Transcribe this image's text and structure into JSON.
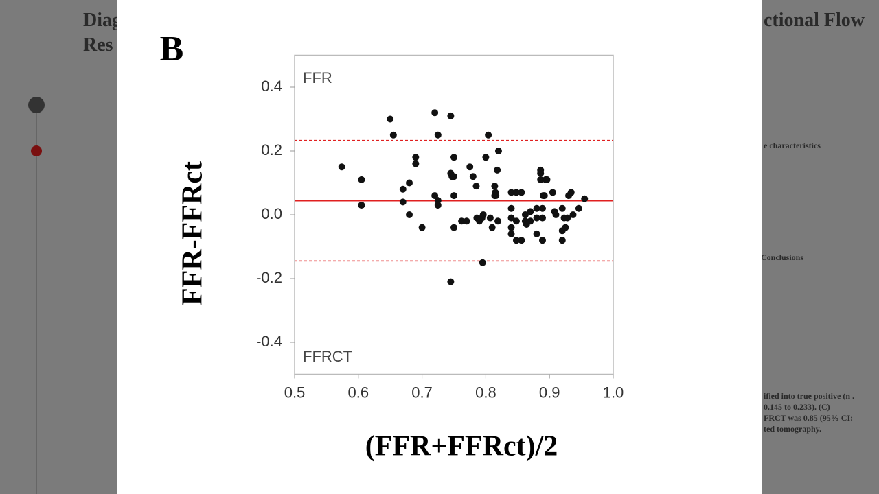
{
  "background": {
    "title_left": "Diag",
    "title_left_2": "Res",
    "title_right": "ctional Flow",
    "table_heading": "e characteristics",
    "conclusions": "Conclusions",
    "result_line_1": "ified into true positive (n .",
    "result_line_2": "0.145 to 0.233). (C)",
    "result_line_3": "FRCT was 0.85 (95%  CI:",
    "result_line_4": "ted tomography."
  },
  "chart_data": {
    "type": "scatter",
    "panel_label": "B",
    "x_label": "(FFR+FFRct)/2",
    "y_label": "FFR-FFRct",
    "annotations": [
      "FFR",
      "FFRCT"
    ],
    "color": "#111111",
    "line_color": "#e02020",
    "mean_line": 0.044,
    "limits_of_agreement": [
      -0.145,
      0.233
    ],
    "xlim": [
      0.5,
      1.0
    ],
    "ylim": [
      -0.5,
      0.5
    ],
    "xticks": [
      0.5,
      0.6,
      0.7,
      0.8,
      0.9,
      {
        "value": 1.0,
        "label": "1.0"
      }
    ],
    "yticks": [
      0.4,
      0.2,
      {
        "value": 0,
        "label": "0.0"
      },
      -0.2,
      -0.4
    ],
    "x": [
      0.574,
      0.605,
      0.605,
      0.65,
      0.655,
      0.67,
      0.67,
      0.68,
      0.68,
      0.69,
      0.69,
      0.7,
      0.72,
      0.72,
      0.725,
      0.725,
      0.725,
      0.745,
      0.745,
      0.745,
      0.747,
      0.75,
      0.75,
      0.75,
      0.75,
      0.762,
      0.77,
      0.775,
      0.78,
      0.785,
      0.786,
      0.79,
      0.794,
      0.796,
      0.795,
      0.8,
      0.804,
      0.807,
      0.81,
      0.814,
      0.814,
      0.815,
      0.816,
      0.818,
      0.82,
      0.819,
      0.84,
      0.84,
      0.84,
      0.84,
      0.84,
      0.848,
      0.848,
      0.848,
      0.856,
      0.856,
      0.862,
      0.862,
      0.864,
      0.87,
      0.87,
      0.88,
      0.88,
      0.88,
      0.886,
      0.886,
      0.886,
      0.889,
      0.889,
      0.889,
      0.89,
      0.892,
      0.894,
      0.896,
      0.905,
      0.91,
      0.908,
      0.92,
      0.92,
      0.92,
      0.923,
      0.925,
      0.928,
      0.93,
      0.934,
      0.937,
      0.946,
      0.955
    ],
    "y": [
      0.15,
      0.11,
      0.03,
      0.3,
      0.25,
      0.08,
      0.04,
      0.1,
      0.0,
      0.18,
      0.16,
      -0.04,
      0.32,
      0.06,
      0.25,
      0.045,
      0.03,
      0.31,
      0.13,
      -0.21,
      0.12,
      0.06,
      0.18,
      0.12,
      -0.04,
      -0.02,
      -0.02,
      0.15,
      0.12,
      0.09,
      -0.01,
      -0.02,
      -0.01,
      0.0,
      -0.15,
      0.18,
      0.25,
      -0.01,
      -0.04,
      0.09,
      0.06,
      0.07,
      0.06,
      0.14,
      0.2,
      -0.02,
      0.07,
      0.02,
      -0.01,
      -0.04,
      -0.06,
      0.07,
      -0.02,
      -0.08,
      0.07,
      -0.08,
      0.0,
      -0.02,
      -0.03,
      0.01,
      -0.02,
      0.02,
      -0.01,
      -0.06,
      0.13,
      0.11,
      0.14,
      -0.01,
      0.02,
      -0.08,
      0.06,
      0.06,
      0.11,
      0.11,
      0.07,
      0.0,
      0.01,
      0.02,
      -0.05,
      -0.08,
      -0.01,
      -0.04,
      -0.01,
      0.06,
      0.07,
      0.0,
      0.02,
      0.05
    ]
  }
}
